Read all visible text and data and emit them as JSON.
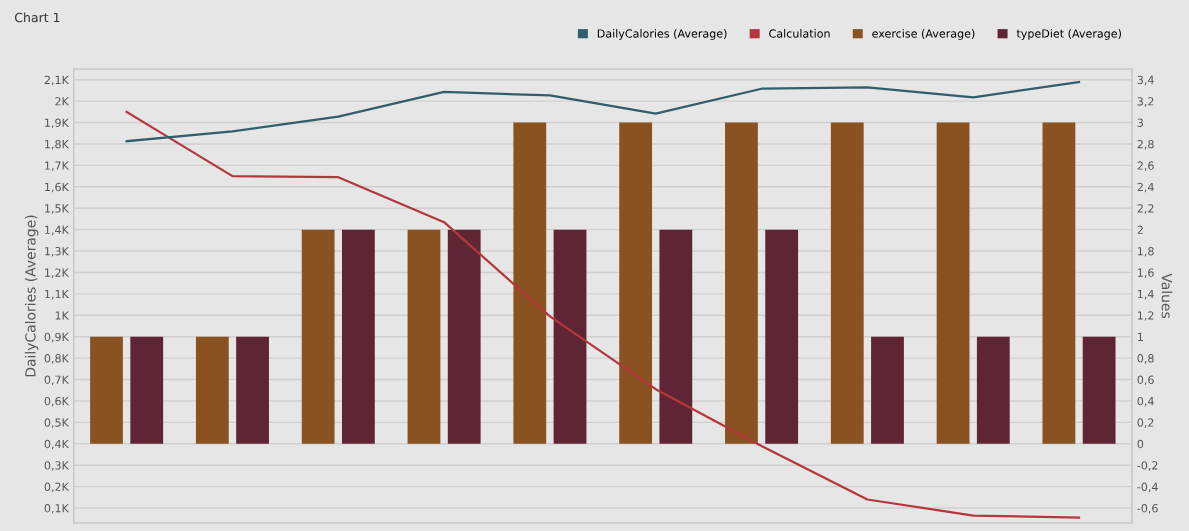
{
  "chart_data": {
    "type": "bar",
    "title": "Chart 1",
    "ylabel": "DailyCalories (Average)",
    "y2label": "Values",
    "categories": [
      null,
      null,
      null,
      null,
      null,
      null,
      null,
      null,
      null,
      null
    ],
    "series": [
      {
        "name": "DailyCalories (Average)",
        "type": "line",
        "axis": "y",
        "color": "#2f5f6e",
        "values": [
          1813,
          1859,
          1928,
          2043,
          2027,
          1942,
          2058,
          2064,
          2018,
          2089
        ]
      },
      {
        "name": "Calculation",
        "type": "line",
        "axis": "y2",
        "color": "#b5373d",
        "values": [
          3.1,
          2.5,
          2.49,
          2.07,
          1.19,
          0.51,
          -0.02,
          -0.52,
          -0.67,
          -0.69
        ]
      },
      {
        "name": "exercise (Average)",
        "axis": "y2",
        "color": "#8a5221",
        "values": [
          1,
          1,
          2,
          2,
          3,
          3,
          3,
          3,
          3,
          3
        ]
      },
      {
        "name": "typeDiet (Average)",
        "axis": "y2",
        "color": "#5f2535",
        "values": [
          1,
          1,
          2,
          2,
          2,
          2,
          2,
          1,
          1,
          1
        ]
      }
    ],
    "ylim": [
      30,
      2150
    ],
    "yticks": [
      {
        "value": 100,
        "label": "0,1K"
      },
      {
        "value": 200,
        "label": "0,2K"
      },
      {
        "value": 300,
        "label": "0,3K"
      },
      {
        "value": 400,
        "label": "0,4K"
      },
      {
        "value": 500,
        "label": "0,5K"
      },
      {
        "value": 600,
        "label": "0,6K"
      },
      {
        "value": 700,
        "label": "0,7K"
      },
      {
        "value": 800,
        "label": "0,8K"
      },
      {
        "value": 900,
        "label": "0,9K"
      },
      {
        "value": 1000,
        "label": "1K"
      },
      {
        "value": 1100,
        "label": "1,1K"
      },
      {
        "value": 1200,
        "label": "1,2K"
      },
      {
        "value": 1300,
        "label": "1,3K"
      },
      {
        "value": 1400,
        "label": "1,4K"
      },
      {
        "value": 1500,
        "label": "1,5K"
      },
      {
        "value": 1600,
        "label": "1,6K"
      },
      {
        "value": 1700,
        "label": "1,7K"
      },
      {
        "value": 1800,
        "label": "1,8K"
      },
      {
        "value": 1900,
        "label": "1,9K"
      },
      {
        "value": 2000,
        "label": "2K"
      },
      {
        "value": 2100,
        "label": "2,1K"
      }
    ],
    "y2lim": [
      -0.74,
      3.5
    ],
    "y2ticks": [
      {
        "value": -0.6,
        "label": "-0,6"
      },
      {
        "value": -0.4,
        "label": "-0,4"
      },
      {
        "value": -0.2,
        "label": "-0,2"
      },
      0,
      {
        "value": 0.2,
        "label": "0,2"
      },
      {
        "value": 0.4,
        "label": "0,4"
      },
      {
        "value": 0.6,
        "label": "0,6"
      },
      {
        "value": 0.8,
        "label": "0,8"
      },
      1,
      {
        "value": 1.2,
        "label": "1,2"
      },
      {
        "value": 1.4,
        "label": "1,4"
      },
      {
        "value": 1.6,
        "label": "1,6"
      },
      {
        "value": 1.8,
        "label": "1,8"
      },
      2,
      {
        "value": 2.2,
        "label": "2,2"
      },
      {
        "value": 2.4,
        "label": "2,4"
      },
      {
        "value": 2.6,
        "label": "2,6"
      },
      {
        "value": 2.8,
        "label": "2,8"
      },
      3,
      {
        "value": 3.2,
        "label": "3,2"
      },
      {
        "value": 3.4,
        "label": "3,4"
      }
    ],
    "grid": "y",
    "legend": "top right",
    "marker": "none",
    "line_style": "solid"
  }
}
